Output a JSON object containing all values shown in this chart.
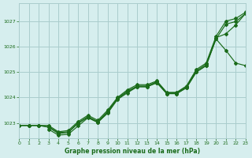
{
  "xlabel": "Graphe pression niveau de la mer (hPa)",
  "xlim": [
    0,
    23
  ],
  "ylim": [
    1022.4,
    1027.7
  ],
  "yticks": [
    1023,
    1024,
    1025,
    1026,
    1027
  ],
  "xticks": [
    0,
    1,
    2,
    3,
    4,
    5,
    6,
    7,
    8,
    9,
    10,
    11,
    12,
    13,
    14,
    15,
    16,
    17,
    18,
    19,
    20,
    21,
    22,
    23
  ],
  "bg_color": "#d6eeee",
  "grid_color": "#aacccc",
  "line_color": "#1a6b1a",
  "lines": [
    {
      "x": [
        0,
        1,
        2,
        3,
        4,
        5,
        6,
        7,
        8,
        9,
        10,
        11,
        12,
        13,
        14,
        15,
        16,
        17,
        18,
        19,
        20,
        21,
        22,
        23
      ],
      "y": [
        1022.9,
        1022.9,
        1022.9,
        1022.9,
        1022.65,
        1022.7,
        1023.05,
        1023.3,
        1023.1,
        1023.5,
        1024.0,
        1024.3,
        1024.5,
        1024.5,
        1024.65,
        1024.2,
        1024.2,
        1024.45,
        1025.1,
        1025.35,
        1026.4,
        1027.0,
        1027.1,
        1027.35
      ]
    },
    {
      "x": [
        0,
        1,
        2,
        3,
        4,
        5,
        6,
        7,
        8,
        9,
        10,
        11,
        12,
        13,
        14,
        15,
        16,
        17,
        18,
        19,
        20,
        21,
        22,
        23
      ],
      "y": [
        1022.9,
        1022.9,
        1022.9,
        1022.85,
        1022.62,
        1022.65,
        1023.0,
        1023.25,
        1023.05,
        1023.45,
        1023.97,
        1024.25,
        1024.45,
        1024.45,
        1024.62,
        1024.18,
        1024.18,
        1024.42,
        1025.05,
        1025.3,
        1026.35,
        1026.5,
        1026.85,
        1027.3
      ]
    },
    {
      "x": [
        0,
        1,
        2,
        3,
        4,
        5,
        6,
        7,
        8,
        9,
        10,
        11,
        12,
        13,
        14,
        15,
        16,
        17,
        18,
        19,
        20,
        21,
        22,
        23
      ],
      "y": [
        1022.9,
        1022.9,
        1022.9,
        1022.83,
        1022.58,
        1022.62,
        1022.98,
        1023.22,
        1023.02,
        1023.42,
        1023.94,
        1024.22,
        1024.42,
        1024.42,
        1024.58,
        1024.15,
        1024.15,
        1024.38,
        1025.0,
        1025.25,
        1026.3,
        1025.85,
        1025.35,
        1025.25
      ]
    },
    {
      "x": [
        3,
        4,
        5,
        6,
        7,
        8,
        9,
        10,
        11,
        12,
        13,
        14,
        15,
        16,
        17,
        18,
        19,
        20,
        21,
        22,
        23
      ],
      "y": [
        1022.75,
        1022.52,
        1022.55,
        1022.88,
        1023.2,
        1023.02,
        1023.38,
        1023.92,
        1024.18,
        1024.42,
        1024.42,
        1024.58,
        1024.15,
        1024.15,
        1024.38,
        1025.0,
        1025.25,
        1026.3,
        1026.88,
        1026.98,
        1027.3
      ]
    }
  ]
}
